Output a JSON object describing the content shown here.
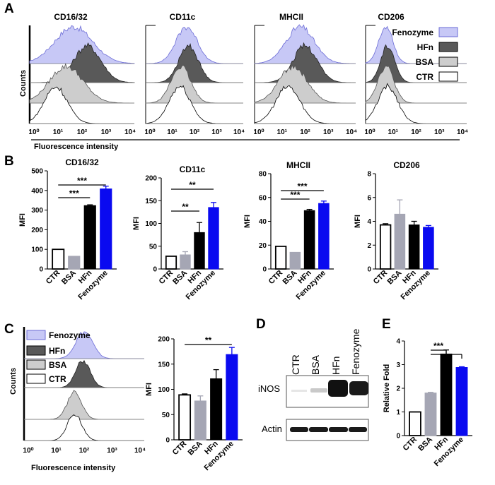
{
  "panels": {
    "A": {
      "letter": "A",
      "y_label": "Counts",
      "x_label": "Fluorescence intensity",
      "markers": [
        "CD16/32",
        "CD11c",
        "MHCII",
        "CD206"
      ],
      "x_ticks": [
        "10⁰",
        "10¹",
        "10²",
        "10³",
        "10⁴"
      ],
      "legend": [
        "Fenozyme",
        "HFn",
        "BSA",
        "CTR"
      ]
    },
    "B": {
      "letter": "B"
    },
    "C": {
      "letter": "C",
      "y_label": "Counts",
      "x_label": "Fluorescence intensity",
      "x_ticks": [
        "10⁰",
        "10¹",
        "10²",
        "10³",
        "10⁴"
      ],
      "legend": [
        "Fenozyme",
        "HFn",
        "BSA",
        "CTR"
      ]
    },
    "D": {
      "letter": "D",
      "lanes": [
        "CTR",
        "BSA",
        "HFn",
        "Fenozyme"
      ],
      "bands": [
        "iNOS",
        "Actin"
      ]
    },
    "E": {
      "letter": "E"
    }
  },
  "colors": {
    "ctr": "#ffffff",
    "bsa": "#a5a6b4",
    "hfn": "#000000",
    "fenozyme": "#0a0af0",
    "hist_fenozyme": "#c7c8f6",
    "hist_hfn": "#595959",
    "hist_bsa": "#cdcdcd"
  },
  "chart_data": [
    {
      "id": "B-CD16/32",
      "type": "bar",
      "title": "CD16/32",
      "ylabel": "MFI",
      "categories": [
        "CTR",
        "BSA",
        "HFn",
        "Fenozyme"
      ],
      "values": [
        100,
        65,
        323,
        408
      ],
      "errors": [
        0,
        0,
        4,
        14
      ],
      "ylim": [
        0,
        500
      ],
      "yticks": [
        0,
        100,
        200,
        300,
        400,
        500
      ],
      "significance": [
        {
          "from": 0,
          "to": 2,
          "label": "***"
        },
        {
          "from": 0,
          "to": 3,
          "label": "***"
        }
      ]
    },
    {
      "id": "B-CD11c",
      "type": "bar",
      "title": "CD11c",
      "ylabel": "MFI",
      "categories": [
        "CTR",
        "BSA",
        "HFn",
        "Fenozyme"
      ],
      "values": [
        28,
        31,
        80,
        135
      ],
      "errors": [
        0,
        7,
        22,
        11
      ],
      "ylim": [
        0,
        200
      ],
      "yticks": [
        0,
        50,
        100,
        150,
        200
      ],
      "significance": [
        {
          "from": 0,
          "to": 2,
          "label": "**"
        },
        {
          "from": 0,
          "to": 3,
          "label": "**"
        }
      ]
    },
    {
      "id": "B-MHCII",
      "type": "bar",
      "title": "MHCII",
      "ylabel": "MFI",
      "categories": [
        "CTR",
        "BSA",
        "HFn",
        "Fenozyme"
      ],
      "values": [
        19,
        14,
        49,
        55
      ],
      "errors": [
        0,
        0,
        1,
        2
      ],
      "ylim": [
        0,
        80
      ],
      "yticks": [
        0,
        20,
        40,
        60,
        80
      ],
      "significance": [
        {
          "from": 0,
          "to": 2,
          "label": "***"
        },
        {
          "from": 0,
          "to": 3,
          "label": "***"
        }
      ]
    },
    {
      "id": "B-CD206",
      "type": "bar",
      "title": "CD206",
      "ylabel": "MFI",
      "categories": [
        "CTR",
        "BSA",
        "HFn",
        "Fenozyme"
      ],
      "values": [
        3.7,
        4.6,
        3.7,
        3.5
      ],
      "errors": [
        0.1,
        1.2,
        0.3,
        0.15
      ],
      "ylim": [
        0,
        8
      ],
      "yticks": [
        0,
        2,
        4,
        6,
        8
      ],
      "significance": []
    },
    {
      "id": "C-MFI",
      "type": "bar",
      "title": "",
      "ylabel": "MFI",
      "categories": [
        "CTR",
        "BSA",
        "HFn",
        "Fenozyme"
      ],
      "values": [
        89,
        77,
        121,
        169
      ],
      "errors": [
        2,
        10,
        18,
        14
      ],
      "ylim": [
        0,
        200
      ],
      "yticks": [
        0,
        50,
        100,
        150,
        200
      ],
      "significance": [
        {
          "from": 0,
          "to": 3,
          "label": "**"
        }
      ]
    },
    {
      "id": "E-iNOS",
      "type": "bar",
      "title": "",
      "ylabel": "Relative Fold",
      "categories": [
        "CTR",
        "BSA",
        "HFn",
        "Fenozyme"
      ],
      "values": [
        1.0,
        1.8,
        3.45,
        2.88
      ],
      "errors": [
        0,
        0.03,
        0.17,
        0.03
      ],
      "ylim": [
        0,
        4
      ],
      "yticks": [
        0,
        1,
        2,
        3,
        4
      ],
      "significance": [
        {
          "from": 1,
          "to": 2,
          "label": "***"
        },
        {
          "from": 1,
          "to": 3,
          "label": ""
        }
      ]
    }
  ]
}
